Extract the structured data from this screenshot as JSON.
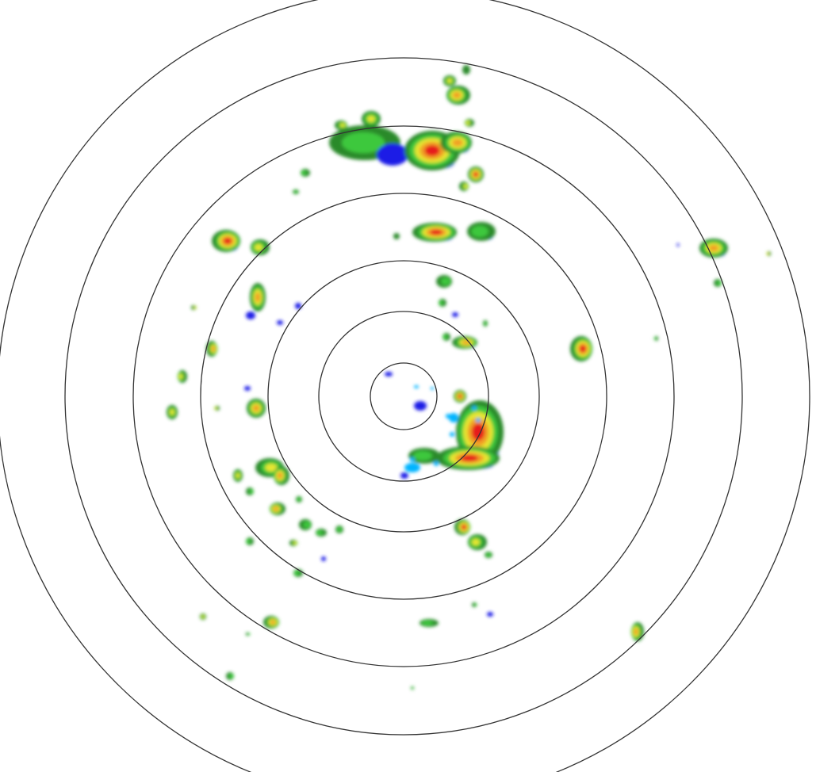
{
  "radar": {
    "range_ring_count": 7,
    "colors": {
      "ring": "#333333",
      "background": "#ffffff",
      "reflectivity_scale": [
        "#1e1ee6",
        "#00b4ff",
        "#2a8a2a",
        "#3cc83c",
        "#e6e632",
        "#f0a028",
        "#e61e1e"
      ]
    }
  }
}
